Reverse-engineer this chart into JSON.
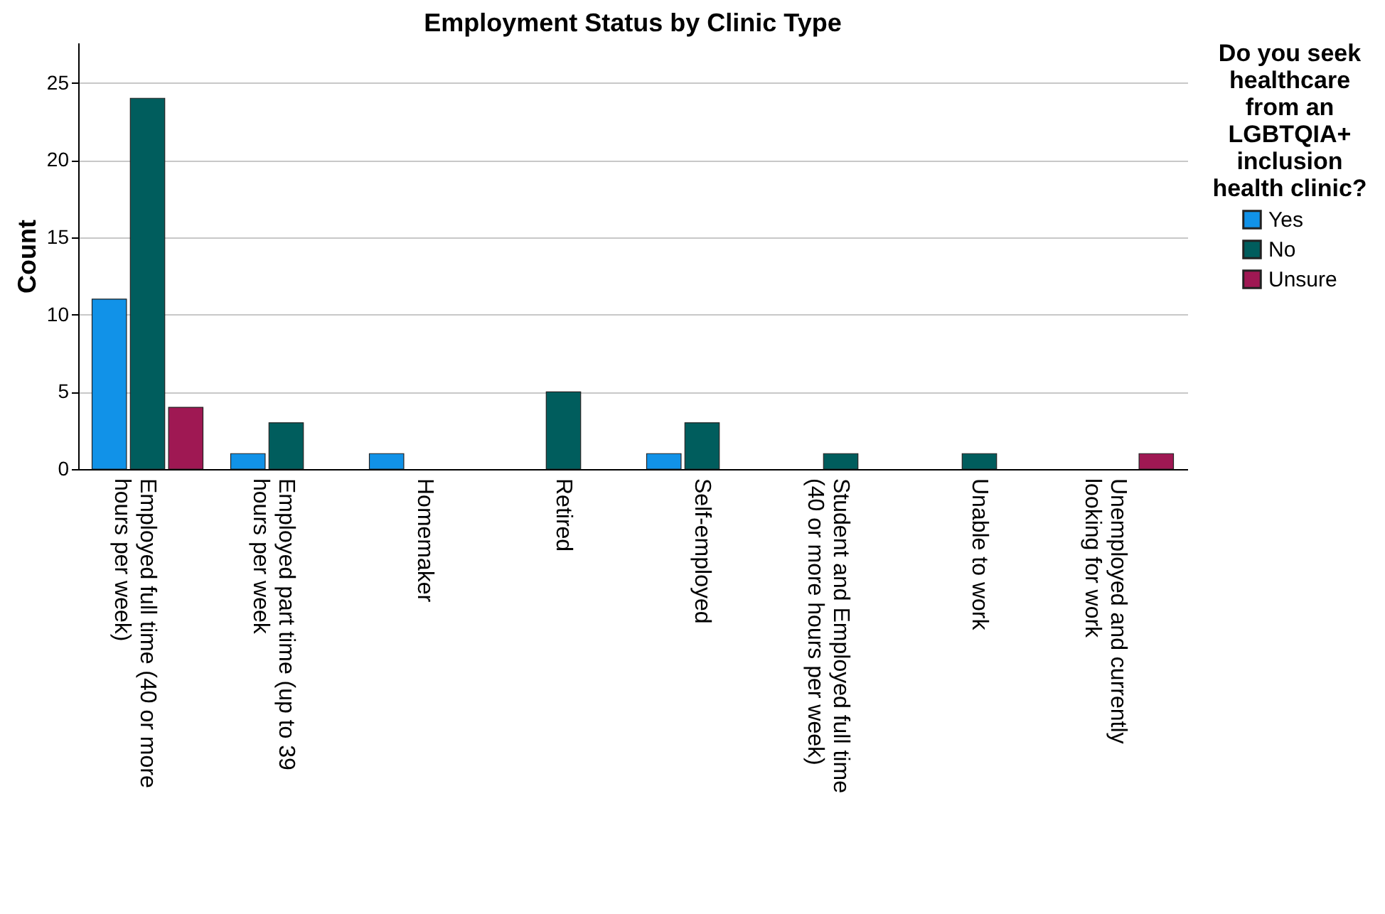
{
  "chart_data": {
    "type": "bar",
    "title": "Employment Status by Clinic Type",
    "categories": [
      "Employed full time (40 or more hours per week)",
      "Employed part time (up to 39 hours per week",
      "Homemaker",
      "Retired",
      "Self-employed",
      "Student and Employed full time (40 or more hours per week)",
      "Unable to work",
      "Unemployed and currently looking for work"
    ],
    "series": [
      {
        "name": "Yes",
        "color": "#1192e8",
        "values": [
          11,
          1,
          1,
          null,
          1,
          null,
          null,
          null
        ]
      },
      {
        "name": "No",
        "color": "#005d5d",
        "values": [
          24,
          3,
          null,
          5,
          3,
          1,
          1,
          null
        ]
      },
      {
        "name": "Unsure",
        "color": "#9f1853",
        "values": [
          4,
          null,
          null,
          null,
          null,
          null,
          null,
          1
        ]
      }
    ],
    "ylabel": "Count",
    "legend_title": "Do you seek healthcare from an LGBTQIA+ inclusion health clinic?",
    "ylim": [
      0,
      27.6
    ],
    "yticks": [
      0,
      5,
      10,
      15,
      20,
      25
    ],
    "grid": "y",
    "legend": "right"
  }
}
